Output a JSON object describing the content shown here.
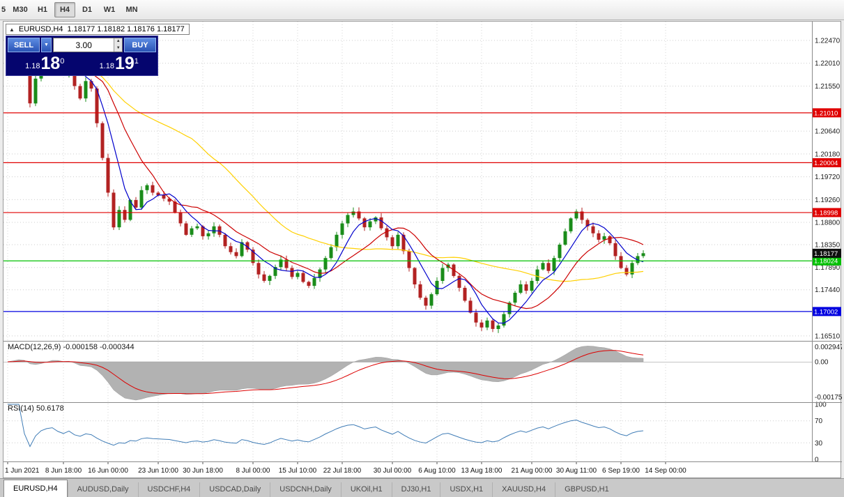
{
  "toolbar": {
    "partial_label": "5",
    "timeframes": [
      "M30",
      "H1",
      "H4",
      "D1",
      "W1",
      "MN"
    ],
    "active": "H4"
  },
  "chart_header": {
    "symbol": "EURUSD,H4",
    "ohlc": "1.18177 1.18182 1.18176 1.18177"
  },
  "trade_panel": {
    "sell_label": "SELL",
    "buy_label": "BUY",
    "volume": "3.00",
    "dropdown_glyph": "▼",
    "spin_up": "▲",
    "spin_down": "▼",
    "bid_prefix": "1.18",
    "bid_big": "18",
    "bid_sup": "0",
    "ask_prefix": "1.18",
    "ask_big": "19",
    "ask_sup": "1"
  },
  "indicators": {
    "macd_label": "MACD(12,26,9) -0.000158 -0.000344",
    "rsi_label": "RSI(14) 50.6178"
  },
  "tabs": {
    "active": "EURUSD,H4",
    "items": [
      "EURUSD,H4",
      "AUDUSD,Daily",
      "USDCHF,H4",
      "USDCAD,Daily",
      "USDCNH,Daily",
      "UKOil,H1",
      "DJ30,H1",
      "USDX,H1",
      "XAUUSD,H4",
      "GBPUSD,H1"
    ]
  },
  "chart_data": {
    "type": "candlestick",
    "symbol": "EURUSD",
    "timeframe": "H4",
    "price_axis": {
      "max": 1.2285,
      "min": 1.1641,
      "labels": [
        {
          "text": "1.22470",
          "price": 1.2247
        },
        {
          "text": "1.22010",
          "price": 1.2201
        },
        {
          "text": "1.21550",
          "price": 1.2155
        },
        {
          "text": "1.20640",
          "price": 1.2064
        },
        {
          "text": "1.20180",
          "price": 1.2018
        },
        {
          "text": "1.19720",
          "price": 1.1972
        },
        {
          "text": "1.19260",
          "price": 1.1926
        },
        {
          "text": "1.18800",
          "price": 1.188
        },
        {
          "text": "1.18350",
          "price": 1.1835
        },
        {
          "text": "1.17890",
          "price": 1.1789
        },
        {
          "text": "1.17440",
          "price": 1.1744
        },
        {
          "text": "1.16510",
          "price": 1.1651
        }
      ]
    },
    "levels": [
      {
        "text": "1.21010",
        "price": 1.2101,
        "color": "#e00000"
      },
      {
        "text": "1.20004",
        "price": 1.20004,
        "color": "#e00000"
      },
      {
        "text": "1.18998",
        "price": 1.18998,
        "color": "#e00000"
      },
      {
        "text": "1.18024",
        "price": 1.18024,
        "color": "#00c000"
      },
      {
        "text": "1.17002",
        "price": 1.17002,
        "color": "#0000e0"
      }
    ],
    "current_price": {
      "text": "1.18177",
      "price": 1.18177,
      "color": "#101010"
    },
    "candles": {
      "bull_color": "#1a8c1a",
      "bear_color": "#b22222",
      "closes": [
        1.22,
        1.2225,
        1.2235,
        1.2195,
        1.212,
        1.217,
        1.221,
        1.223,
        1.224,
        1.2205,
        1.218,
        1.221,
        1.2155,
        1.213,
        1.2165,
        1.215,
        1.208,
        1.201,
        1.194,
        1.187,
        1.1905,
        1.1885,
        1.1925,
        1.191,
        1.1945,
        1.1955,
        1.194,
        1.1935,
        1.1928,
        1.1922,
        1.19,
        1.1878,
        1.1855,
        1.1868,
        1.1872,
        1.1852,
        1.1858,
        1.1872,
        1.1855,
        1.1832,
        1.182,
        1.1812,
        1.184,
        1.1825,
        1.1798,
        1.1775,
        1.1762,
        1.1772,
        1.179,
        1.1805,
        1.1788,
        1.177,
        1.1778,
        1.176,
        1.1752,
        1.1768,
        1.1785,
        1.1808,
        1.183,
        1.1855,
        1.1878,
        1.1895,
        1.1902,
        1.1888,
        1.187,
        1.1882,
        1.189,
        1.1868,
        1.185,
        1.1832,
        1.1855,
        1.1822,
        1.1788,
        1.1755,
        1.1728,
        1.1712,
        1.1735,
        1.1762,
        1.1788,
        1.1795,
        1.1772,
        1.1748,
        1.1722,
        1.1698,
        1.1678,
        1.1668,
        1.1682,
        1.1665,
        1.1672,
        1.1695,
        1.1718,
        1.1738,
        1.1755,
        1.1742,
        1.1762,
        1.1785,
        1.1798,
        1.1782,
        1.1808,
        1.1835,
        1.1862,
        1.1888,
        1.1902,
        1.1885,
        1.1872,
        1.1858,
        1.1845,
        1.1852,
        1.1838,
        1.1812,
        1.1788,
        1.1775,
        1.1798,
        1.1812,
        1.18177
      ]
    },
    "moving_averages": [
      {
        "period": 6,
        "color": "#0000cc"
      },
      {
        "period": 13,
        "color": "#cc0000"
      },
      {
        "period": 34,
        "color": "#ffd000"
      }
    ],
    "macd": {
      "fast": 12,
      "slow": 26,
      "signal": 9,
      "histogram_color": "#b2b2b2",
      "signal_color": "#dd0000",
      "axis_labels": [
        "0.002947",
        "0.00",
        "-0.001751"
      ]
    },
    "rsi": {
      "period": 14,
      "color": "#3f7cb6",
      "levels": [
        70,
        30
      ],
      "axis_labels": [
        "100",
        "70",
        "30",
        "0"
      ]
    },
    "time_axis": [
      {
        "text": "1 Jun 2021",
        "index": 0
      },
      {
        "text": "8 Jun 18:00",
        "index": 10
      },
      {
        "text": "16 Jun 00:00",
        "index": 18
      },
      {
        "text": "23 Jun 10:00",
        "index": 27
      },
      {
        "text": "30 Jun 18:00",
        "index": 35
      },
      {
        "text": "8 Jul 00:00",
        "index": 44
      },
      {
        "text": "15 Jul 10:00",
        "index": 52
      },
      {
        "text": "22 Jul 18:00",
        "index": 60
      },
      {
        "text": "30 Jul 00:00",
        "index": 69
      },
      {
        "text": "6 Aug 10:00",
        "index": 77
      },
      {
        "text": "13 Aug 18:00",
        "index": 85
      },
      {
        "text": "21 Aug 00:00",
        "index": 94
      },
      {
        "text": "30 Aug 11:00",
        "index": 102
      },
      {
        "text": "6 Sep 19:00",
        "index": 110
      },
      {
        "text": "14 Sep 00:00",
        "index": 118
      }
    ]
  }
}
